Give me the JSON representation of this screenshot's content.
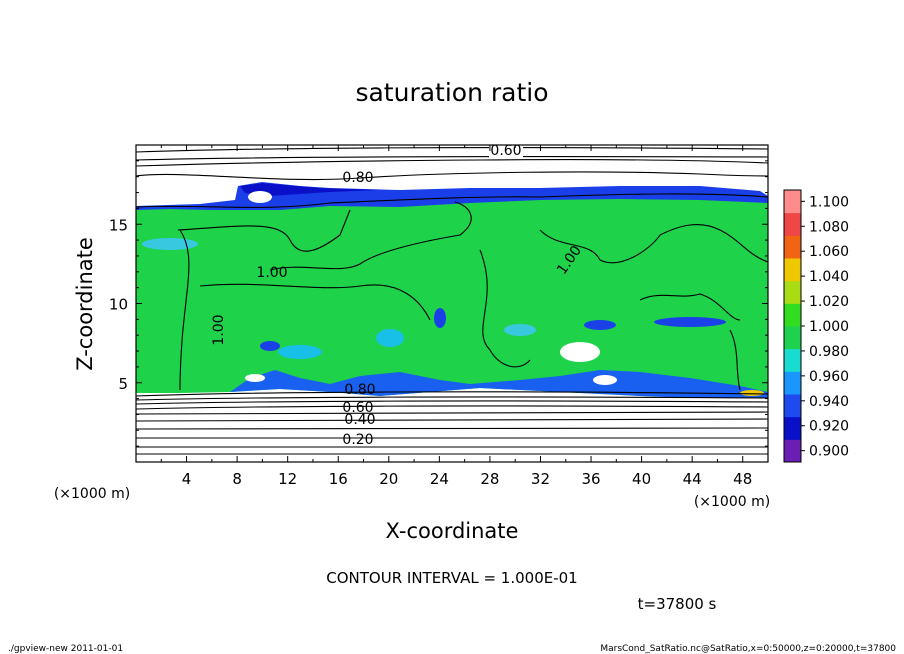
{
  "chart_data": {
    "type": "heatmap",
    "title": "saturation ratio",
    "xlabel": "X-coordinate",
    "ylabel": "Z-coordinate",
    "x_unit": "(×1000 m)",
    "y_unit": "(×1000 m)",
    "xlim": [
      0,
      50
    ],
    "ylim": [
      0,
      20
    ],
    "x_ticks": [
      "4",
      "8",
      "12",
      "16",
      "20",
      "24",
      "28",
      "32",
      "36",
      "40",
      "44",
      "48"
    ],
    "y_ticks": [
      "5",
      "10",
      "15"
    ],
    "contour_labels": [
      "0.60",
      "0.80",
      "1.00",
      "1.00",
      "1.00",
      "0.80",
      "0.60",
      "0.40",
      "0.20"
    ],
    "contour_interval_text": "CONTOUR INTERVAL = 1.000E-01",
    "time_text": "t=37800 s",
    "colorbar": {
      "levels": [
        "0.900",
        "0.920",
        "0.940",
        "0.960",
        "0.980",
        "1.000",
        "1.020",
        "1.040",
        "1.060",
        "1.080",
        "1.100"
      ],
      "colors": [
        "#6a1eb4",
        "#0a10c8",
        "#1e4af0",
        "#1a96ff",
        "#18dcd0",
        "#1ed250",
        "#32dc1e",
        "#aadc14",
        "#f0c800",
        "#f06414",
        "#f04646",
        "#ff8c8c"
      ]
    },
    "grid": false,
    "legend": "right"
  },
  "footer": {
    "left": "./gpview-new   2011-01-01",
    "right": "MarsCond_SatRatio.nc@SatRatio,x=0:50000,z=0:20000,t=37800"
  }
}
